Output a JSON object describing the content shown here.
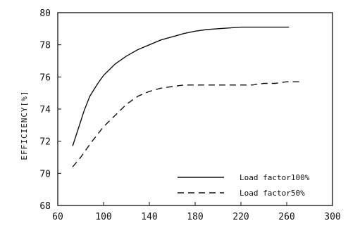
{
  "chart_data": {
    "type": "line",
    "title": "",
    "xlabel": "",
    "ylabel": "EFFICIENCY[%]",
    "xlim": [
      60,
      300
    ],
    "ylim": [
      68,
      80
    ],
    "xticks": [
      60,
      100,
      140,
      180,
      220,
      260,
      300
    ],
    "yticks": [
      68,
      70,
      72,
      74,
      76,
      78,
      80
    ],
    "grid": false,
    "legend_position": "bottom-right",
    "series": [
      {
        "name": "Load factor100%",
        "style": "solid",
        "x": [
          73,
          78,
          83,
          88,
          95,
          100,
          110,
          120,
          130,
          140,
          150,
          160,
          170,
          180,
          190,
          200,
          210,
          220,
          230,
          240,
          250,
          262
        ],
        "y": [
          71.7,
          72.8,
          73.9,
          74.8,
          75.6,
          76.1,
          76.8,
          77.3,
          77.7,
          78.0,
          78.3,
          78.5,
          78.7,
          78.85,
          78.95,
          79.0,
          79.05,
          79.1,
          79.1,
          79.1,
          79.1,
          79.1
        ]
      },
      {
        "name": "Load factor50%",
        "style": "dashed",
        "x": [
          73,
          80,
          90,
          100,
          110,
          120,
          130,
          140,
          150,
          160,
          170,
          180,
          190,
          200,
          210,
          220,
          230,
          240,
          250,
          260,
          272
        ],
        "y": [
          70.4,
          71.0,
          72.0,
          72.9,
          73.6,
          74.3,
          74.8,
          75.1,
          75.3,
          75.4,
          75.5,
          75.5,
          75.5,
          75.5,
          75.5,
          75.5,
          75.5,
          75.6,
          75.6,
          75.7,
          75.7
        ]
      }
    ]
  }
}
